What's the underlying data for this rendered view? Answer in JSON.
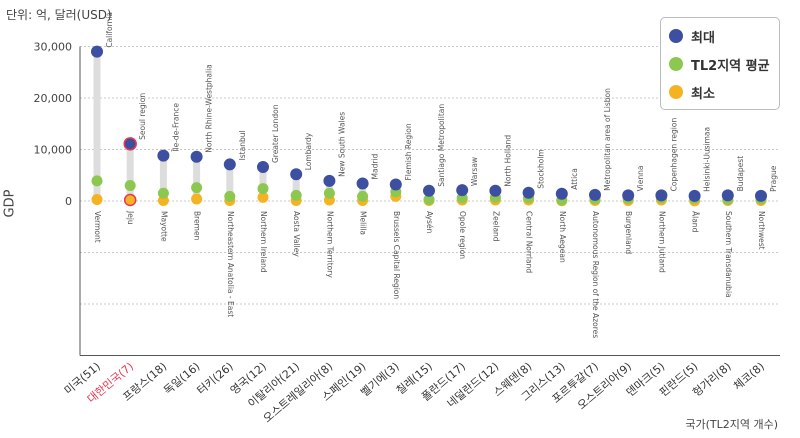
{
  "chart_data": {
    "type": "scatter",
    "title": "",
    "unit_label": "단위: 억, 달러(USD)",
    "ylabel": "GDP",
    "xlabel": "국가(TL2지역 개수)",
    "ylim": [
      -30000,
      30000
    ],
    "yticks": [
      "30,000",
      "20,000",
      "10,000",
      "0"
    ],
    "yticks_values": [
      30000,
      20000,
      10000,
      0
    ],
    "legend_position": "top-right",
    "highlight_color": "#e8384f",
    "series": [
      {
        "name": "최대",
        "color": "#3d4fa0"
      },
      {
        "name": "TL2지역 평균",
        "color": "#8cc850"
      },
      {
        "name": "최소",
        "color": "#f5b323"
      }
    ],
    "categories": [
      {
        "country": "미국(51)",
        "max_region": "California",
        "min_region": "Vermont",
        "max": 29000,
        "avg": 3900,
        "min": 300,
        "highlight": false
      },
      {
        "country": "대한민국(7)",
        "max_region": "Seoul region",
        "min_region": "Jeju",
        "max": 11100,
        "avg": 3000,
        "min": 200,
        "highlight": true
      },
      {
        "country": "프랑스(18)",
        "max_region": "Île-de-France",
        "min_region": "Mayotte",
        "max": 8800,
        "avg": 1500,
        "min": 100,
        "highlight": false
      },
      {
        "country": "독일(16)",
        "max_region": "North Rhine-Westphalia",
        "min_region": "Bremen",
        "max": 8600,
        "avg": 2600,
        "min": 400,
        "highlight": false
      },
      {
        "country": "터키(26)",
        "max_region": "Istanbul",
        "min_region": "Northeastern Anatolia - East",
        "max": 7100,
        "avg": 900,
        "min": 100,
        "highlight": false
      },
      {
        "country": "영국(12)",
        "max_region": "Greater London",
        "min_region": "Northern Ireland",
        "max": 6600,
        "avg": 2400,
        "min": 700,
        "highlight": false
      },
      {
        "country": "이탈리아(21)",
        "max_region": "Lombardy",
        "min_region": "Aosta Valley",
        "max": 5200,
        "avg": 1100,
        "min": 100,
        "highlight": false
      },
      {
        "country": "오스트레일리아(8)",
        "max_region": "New South Wales",
        "min_region": "Northern Territory",
        "max": 3900,
        "avg": 1500,
        "min": 200,
        "highlight": false
      },
      {
        "country": "스페인(19)",
        "max_region": "Madrid",
        "min_region": "Melilla",
        "max": 3400,
        "avg": 900,
        "min": 100,
        "highlight": false
      },
      {
        "country": "벨기에(3)",
        "max_region": "Flemish Region",
        "min_region": "Brussels Capital Region",
        "max": 3200,
        "avg": 1800,
        "min": 900,
        "highlight": false
      },
      {
        "country": "칠레(15)",
        "max_region": "Santiago Metropolitan",
        "min_region": "Aysén",
        "max": 2000,
        "avg": 300,
        "min": 100,
        "highlight": false
      },
      {
        "country": "폴란드(17)",
        "max_region": "Warsaw",
        "min_region": "Opole region",
        "max": 2100,
        "avg": 600,
        "min": 200,
        "highlight": false
      },
      {
        "country": "네덜란드(12)",
        "max_region": "North Holland",
        "min_region": "Zeeland",
        "max": 2000,
        "avg": 700,
        "min": 200,
        "highlight": false
      },
      {
        "country": "스웨덴(8)",
        "max_region": "Stockholm",
        "min_region": "Central Norrland",
        "max": 1600,
        "avg": 600,
        "min": 200,
        "highlight": false
      },
      {
        "country": "그리스(13)",
        "max_region": "Attica",
        "min_region": "North Aegean",
        "max": 1400,
        "avg": 200,
        "min": 50,
        "highlight": false
      },
      {
        "country": "포르투갈(7)",
        "max_region": "Metropolitan area of Lisbon",
        "min_region": "Autonomous Region of the Azores",
        "max": 1200,
        "avg": 400,
        "min": 100,
        "highlight": false
      },
      {
        "country": "오스트리아(9)",
        "max_region": "Vienna",
        "min_region": "Burgenland",
        "max": 1100,
        "avg": 500,
        "min": 100,
        "highlight": false
      },
      {
        "country": "덴마크(5)",
        "max_region": "Copenhagen region",
        "min_region": "Northern Jutland",
        "max": 1100,
        "avg": 600,
        "min": 200,
        "highlight": false
      },
      {
        "country": "핀란드(5)",
        "max_region": "Helsinki-Uusimaa",
        "min_region": "Åland",
        "max": 1000,
        "avg": 500,
        "min": 30,
        "highlight": false
      },
      {
        "country": "헝가리(8)",
        "max_region": "Budapest",
        "min_region": "Southern Transdanubia",
        "max": 1100,
        "avg": 300,
        "min": 100,
        "highlight": false
      },
      {
        "country": "체코(8)",
        "max_region": "Prague",
        "min_region": "Northwest",
        "max": 1000,
        "avg": 400,
        "min": 100,
        "highlight": false
      }
    ]
  }
}
